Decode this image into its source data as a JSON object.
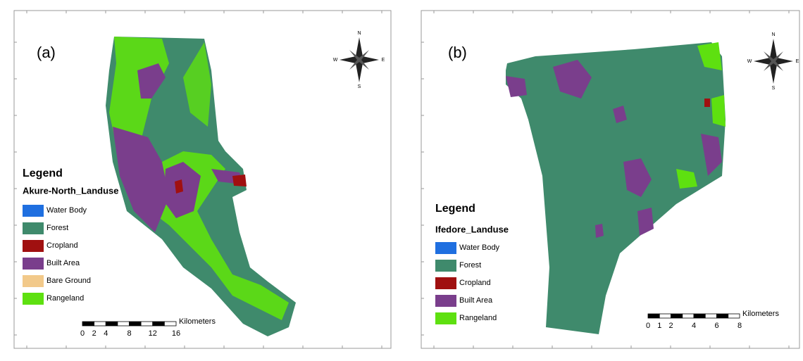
{
  "panels": [
    {
      "label": "(a)",
      "legend_title": "Legend",
      "legend_heading": "Akure-North_Landuse",
      "legend_items": [
        {
          "name": "Water Body",
          "color": "#1f6fe0"
        },
        {
          "name": "Forest",
          "color": "#3f8a6c"
        },
        {
          "name": "Cropland",
          "color": "#a01010"
        },
        {
          "name": "Built Area",
          "color": "#7a3e8c"
        },
        {
          "name": "Bare Ground",
          "color": "#f2c98a"
        },
        {
          "name": "Rangeland",
          "color": "#5ee010"
        }
      ],
      "compass": {
        "n": "N",
        "s": "S",
        "e": "E",
        "w": "W"
      },
      "scale": {
        "unit": "Kilometers",
        "ticks": [
          0,
          2,
          4,
          8,
          12,
          16
        ]
      }
    },
    {
      "label": "(b)",
      "legend_title": "Legend",
      "legend_heading": "Ifedore_Landuse",
      "legend_items": [
        {
          "name": "Water Body",
          "color": "#1f6fe0"
        },
        {
          "name": "Forest",
          "color": "#3f8a6c"
        },
        {
          "name": "Cropland",
          "color": "#a01010"
        },
        {
          "name": "Built Area",
          "color": "#7a3e8c"
        },
        {
          "name": "Rangeland",
          "color": "#5ee010"
        }
      ],
      "compass": {
        "n": "N",
        "s": "S",
        "e": "E",
        "w": "W"
      },
      "scale": {
        "unit": "Kilometers",
        "ticks": [
          0,
          1,
          2,
          4,
          6,
          8
        ]
      }
    }
  ]
}
